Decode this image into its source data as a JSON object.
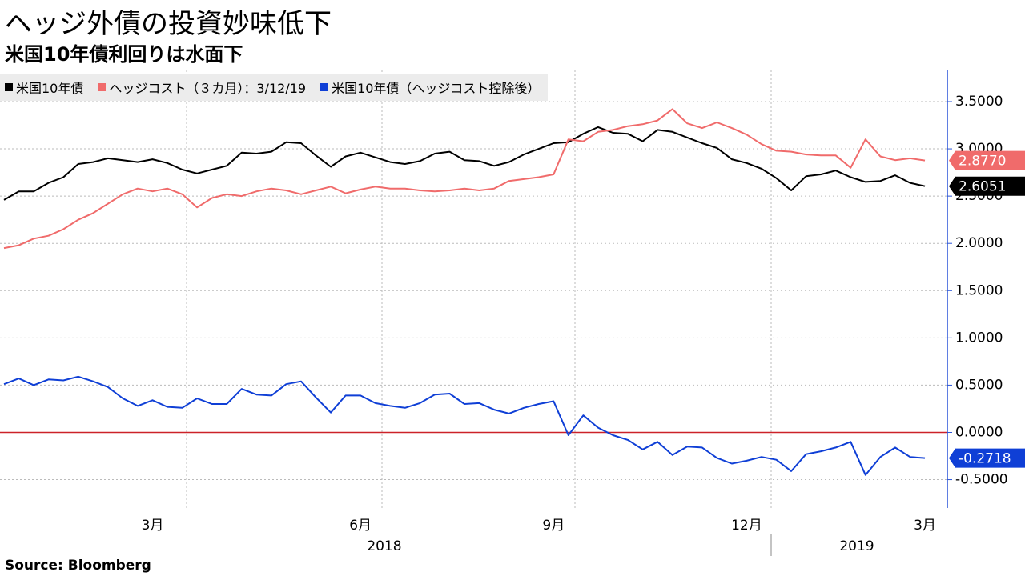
{
  "chart_data": {
    "type": "line",
    "title": "ヘッジ外債の投資妙味低下",
    "subtitle": "米国10年債利回りは水面下",
    "source": "Source:  Bloomberg",
    "categories": [
      null,
      null,
      null,
      null,
      null,
      null,
      null,
      null,
      null,
      null,
      "3月",
      null,
      null,
      null,
      null,
      null,
      null,
      null,
      null,
      null,
      null,
      null,
      null,
      null,
      "6月",
      null,
      null,
      null,
      null,
      null,
      null,
      null,
      null,
      null,
      null,
      null,
      null,
      "9月",
      null,
      null,
      null,
      null,
      null,
      null,
      null,
      null,
      null,
      null,
      null,
      null,
      "12月",
      null,
      null,
      null,
      null,
      null,
      null,
      null,
      null,
      null,
      null,
      null,
      "3月"
    ],
    "year_labels": [
      "2018",
      "2019"
    ],
    "ylim": [
      -0.8,
      3.83
    ],
    "yticks": [
      {
        "value": -0.5,
        "label": "-0.5000"
      },
      {
        "value": 0,
        "label": "0.0000"
      },
      {
        "value": 0.5,
        "label": "0.5000"
      },
      {
        "value": 1,
        "label": "1.0000"
      },
      {
        "value": 1.5,
        "label": "1.5000"
      },
      {
        "value": 2,
        "label": "2.0000"
      },
      {
        "value": 2.5,
        "label": "2.5000"
      },
      {
        "value": 3,
        "label": "3.0000"
      },
      {
        "value": 3.5,
        "label": "3.5000"
      }
    ],
    "grid": true,
    "axis_color": "#2a54d8",
    "reference_line": {
      "value": 0,
      "color": "#cc2229"
    },
    "series": [
      {
        "name": "米国10年債",
        "color": "#000000",
        "last_value_label": "2.6051",
        "values": [
          2.46,
          2.55,
          2.55,
          2.64,
          2.7,
          2.84,
          2.86,
          2.9,
          2.88,
          2.86,
          2.89,
          2.85,
          2.78,
          2.74,
          2.78,
          2.82,
          2.96,
          2.95,
          2.97,
          3.07,
          3.06,
          2.93,
          2.81,
          2.92,
          2.96,
          2.91,
          2.86,
          2.84,
          2.87,
          2.95,
          2.97,
          2.88,
          2.87,
          2.82,
          2.86,
          2.94,
          3.0,
          3.06,
          3.07,
          3.16,
          3.23,
          3.17,
          3.16,
          3.08,
          3.2,
          3.18,
          3.12,
          3.06,
          3.01,
          2.89,
          2.85,
          2.79,
          2.69,
          2.56,
          2.71,
          2.73,
          2.77,
          2.7,
          2.65,
          2.66,
          2.72,
          2.64,
          2.6051
        ]
      },
      {
        "name": "ヘッジコスト（３カ月）：3/12/19",
        "color": "#f06b6b",
        "last_value_label": "2.8770",
        "values": [
          1.95,
          1.98,
          2.05,
          2.08,
          2.15,
          2.25,
          2.32,
          2.42,
          2.52,
          2.58,
          2.55,
          2.58,
          2.52,
          2.38,
          2.48,
          2.52,
          2.5,
          2.55,
          2.58,
          2.56,
          2.52,
          2.56,
          2.6,
          2.53,
          2.57,
          2.6,
          2.58,
          2.58,
          2.56,
          2.55,
          2.56,
          2.58,
          2.56,
          2.58,
          2.66,
          2.68,
          2.7,
          2.73,
          3.1,
          3.08,
          3.18,
          3.2,
          3.24,
          3.26,
          3.3,
          3.42,
          3.27,
          3.22,
          3.28,
          3.22,
          3.15,
          3.05,
          2.98,
          2.97,
          2.94,
          2.93,
          2.93,
          2.8,
          3.1,
          2.92,
          2.88,
          2.9,
          2.877
        ]
      },
      {
        "name": "米国10年債（ヘッジコスト控除後）",
        "color": "#0f3fd6",
        "last_value_label": "-0.2718",
        "values": [
          0.51,
          0.57,
          0.5,
          0.56,
          0.55,
          0.59,
          0.54,
          0.48,
          0.36,
          0.28,
          0.34,
          0.27,
          0.26,
          0.36,
          0.3,
          0.3,
          0.46,
          0.4,
          0.39,
          0.51,
          0.54,
          0.37,
          0.21,
          0.39,
          0.39,
          0.31,
          0.28,
          0.26,
          0.31,
          0.4,
          0.41,
          0.3,
          0.31,
          0.24,
          0.2,
          0.26,
          0.3,
          0.33,
          -0.03,
          0.18,
          0.05,
          -0.03,
          -0.08,
          -0.18,
          -0.1,
          -0.24,
          -0.15,
          -0.16,
          -0.27,
          -0.33,
          -0.3,
          -0.26,
          -0.29,
          -0.41,
          -0.23,
          -0.2,
          -0.16,
          -0.1,
          -0.45,
          -0.26,
          -0.16,
          -0.26,
          -0.2718
        ]
      }
    ]
  }
}
